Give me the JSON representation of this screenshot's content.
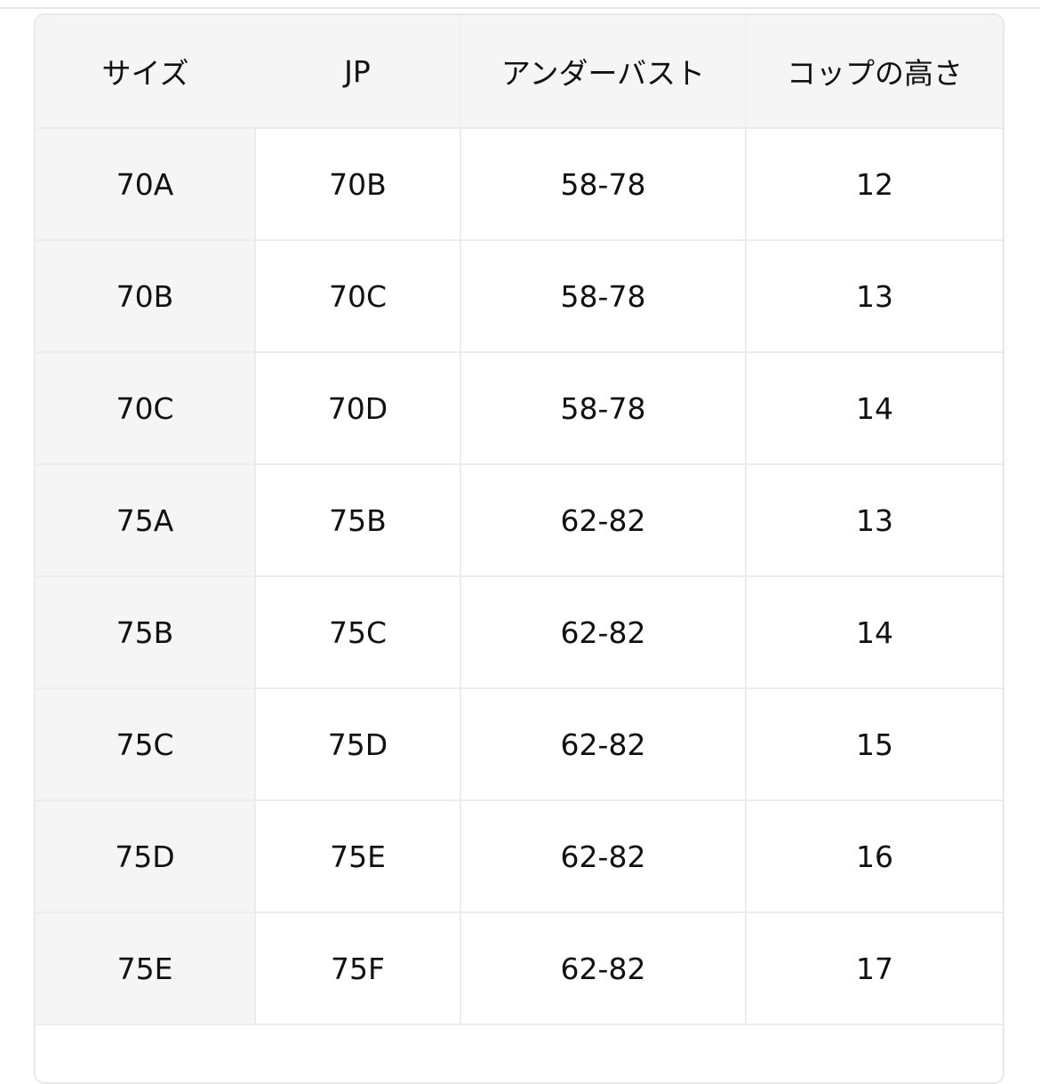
{
  "table": {
    "headers": [
      "サイズ",
      "JP",
      "アンダーバスト",
      "コップの高さ"
    ],
    "rows": [
      [
        "70A",
        "70B",
        "58-78",
        "12"
      ],
      [
        "70B",
        "70C",
        "58-78",
        "13"
      ],
      [
        "70C",
        "70D",
        "58-78",
        "14"
      ],
      [
        "75A",
        "75B",
        "62-82",
        "13"
      ],
      [
        "75B",
        "75C",
        "62-82",
        "14"
      ],
      [
        "75C",
        "75D",
        "62-82",
        "15"
      ],
      [
        "75D",
        "75E",
        "62-82",
        "16"
      ],
      [
        "75E",
        "75F",
        "62-82",
        "17"
      ]
    ]
  }
}
